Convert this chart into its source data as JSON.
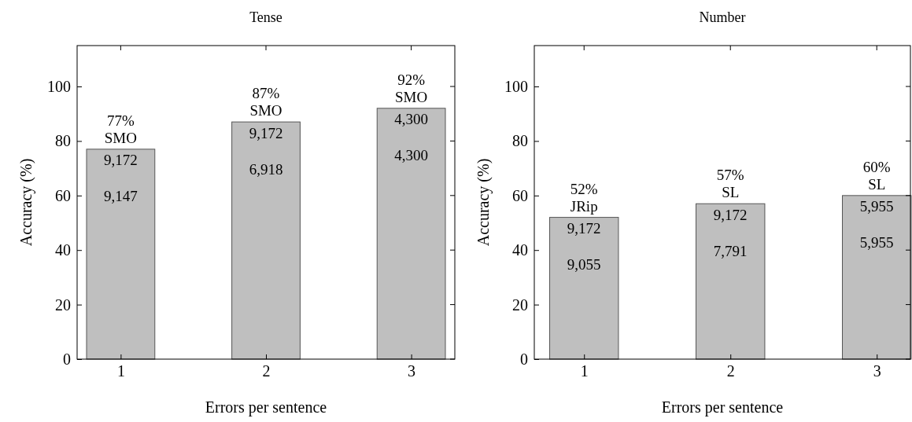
{
  "chart_data": [
    {
      "type": "bar",
      "title": "Tense",
      "xlabel": "Errors per sentence",
      "ylabel": "Accuracy (%)",
      "x": [
        1,
        2,
        3
      ],
      "values": [
        77,
        87,
        92
      ],
      "color": "#bfbfbf",
      "value_labels": [
        "77%\nSMO",
        "87%\nSMO",
        "92%\nSMO"
      ],
      "xlim": [
        0.7,
        3.3
      ],
      "xticks": [
        1,
        2,
        3
      ],
      "ylim": [
        0,
        115
      ],
      "yticks": [
        0,
        20,
        40,
        60,
        80,
        100
      ],
      "grid": false,
      "annotations": [
        "9,172",
        "9,147",
        "9,172",
        "6,918",
        "4,300",
        "4,300"
      ]
    },
    {
      "type": "bar",
      "title": "Number",
      "xlabel": "Errors per sentence",
      "ylabel": "Accuracy (%)",
      "x": [
        1,
        2,
        3
      ],
      "values": [
        52,
        57,
        60
      ],
      "color": "#bfbfbf",
      "value_labels": [
        "52%\nJRip",
        "57%\nSL",
        "60%\nSL"
      ],
      "xlim": [
        0.66,
        3.23
      ],
      "xticks": [
        1,
        2,
        3
      ],
      "ylim": [
        0,
        115
      ],
      "yticks": [
        0,
        20,
        40,
        60,
        80,
        100
      ],
      "grid": false,
      "annotations": [
        "9,172",
        "9,055",
        "9,172",
        "7,791",
        "5,955",
        "5,955"
      ]
    }
  ]
}
